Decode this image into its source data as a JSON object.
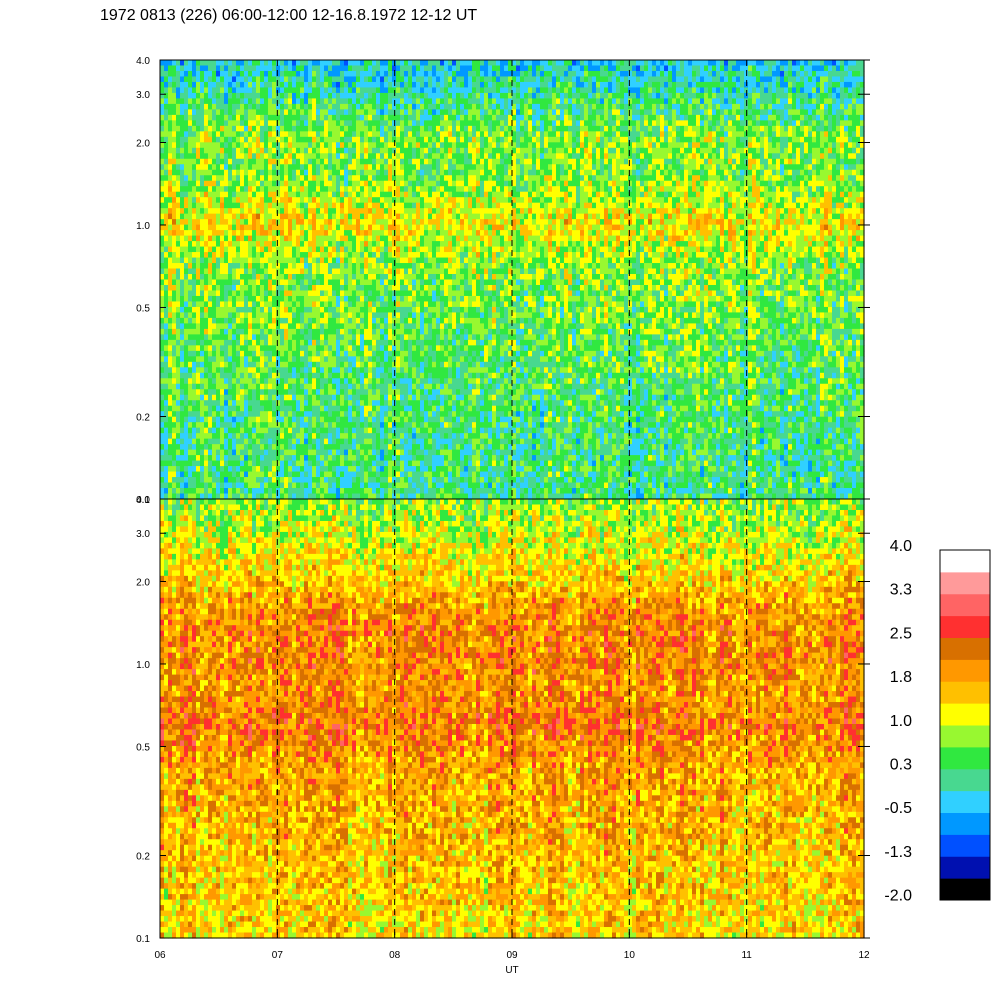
{
  "title": "1972 0813 (226) 06:00-12:00 12-16.8.1972  12-12 UT",
  "chart_data": {
    "type": "heatmap",
    "panels": [
      {
        "y_tick_labels": [
          "0.1",
          "0.2",
          "0.5",
          "1.0",
          "2.0",
          "3.0",
          "4.0"
        ],
        "y_tick_values": [
          0.1,
          0.2,
          0.5,
          1.0,
          2.0,
          3.0,
          4.0
        ],
        "ylim": [
          0.1,
          4.0
        ],
        "yscale": "log",
        "level_profile": [
          {
            "y": 0.1,
            "level": 0.2
          },
          {
            "y": 0.2,
            "level": 0.3
          },
          {
            "y": 0.35,
            "level": 0.5
          },
          {
            "y": 0.5,
            "level": 0.6
          },
          {
            "y": 0.7,
            "level": 0.7
          },
          {
            "y": 0.85,
            "level": 1.0
          },
          {
            "y": 1.0,
            "level": 1.4
          },
          {
            "y": 1.2,
            "level": 1.0
          },
          {
            "y": 1.6,
            "level": 0.6
          },
          {
            "y": 2.0,
            "level": 0.8
          },
          {
            "y": 3.0,
            "level": 0.1
          },
          {
            "y": 4.0,
            "level": -0.3
          }
        ]
      },
      {
        "y_tick_labels": [
          "0.1",
          "0.2",
          "0.5",
          "1.0",
          "2.0",
          "3.0",
          "4.0"
        ],
        "y_tick_values": [
          0.1,
          0.2,
          0.5,
          1.0,
          2.0,
          3.0,
          4.0
        ],
        "ylim": [
          0.1,
          4.0
        ],
        "yscale": "log",
        "level_profile": [
          {
            "y": 0.1,
            "level": 1.4
          },
          {
            "y": 0.2,
            "level": 1.6
          },
          {
            "y": 0.4,
            "level": 1.8
          },
          {
            "y": 0.6,
            "level": 2.2
          },
          {
            "y": 0.8,
            "level": 1.9
          },
          {
            "y": 1.0,
            "level": 2.1
          },
          {
            "y": 1.5,
            "level": 2.0
          },
          {
            "y": 2.0,
            "level": 1.5
          },
          {
            "y": 3.0,
            "level": 1.0
          },
          {
            "y": 4.0,
            "level": 0.7
          }
        ]
      }
    ],
    "x_tick_labels": [
      "06",
      "07",
      "08",
      "09",
      "10",
      "11",
      "12"
    ],
    "x_tick_values": [
      6,
      7,
      8,
      9,
      10,
      11,
      12
    ],
    "xlim": [
      6,
      12
    ],
    "xlabel": "UT",
    "dashed_vertical_lines_at": [
      7,
      8,
      9,
      10,
      11
    ],
    "colorbar": {
      "tick_labels": [
        "4.0",
        "3.3",
        "2.5",
        "1.8",
        "1.0",
        "0.3",
        "-0.5",
        "-1.3",
        "-2.0"
      ],
      "range": [
        -2.0,
        4.0
      ],
      "colors": [
        "#000000",
        "#0010b0",
        "#0050ff",
        "#0098ff",
        "#30d0ff",
        "#48d890",
        "#30e840",
        "#98f830",
        "#ffff00",
        "#ffc000",
        "#ff9800",
        "#d87000",
        "#ff3030",
        "#ff6464",
        "#ff9a9a",
        "#ffffff"
      ]
    }
  }
}
